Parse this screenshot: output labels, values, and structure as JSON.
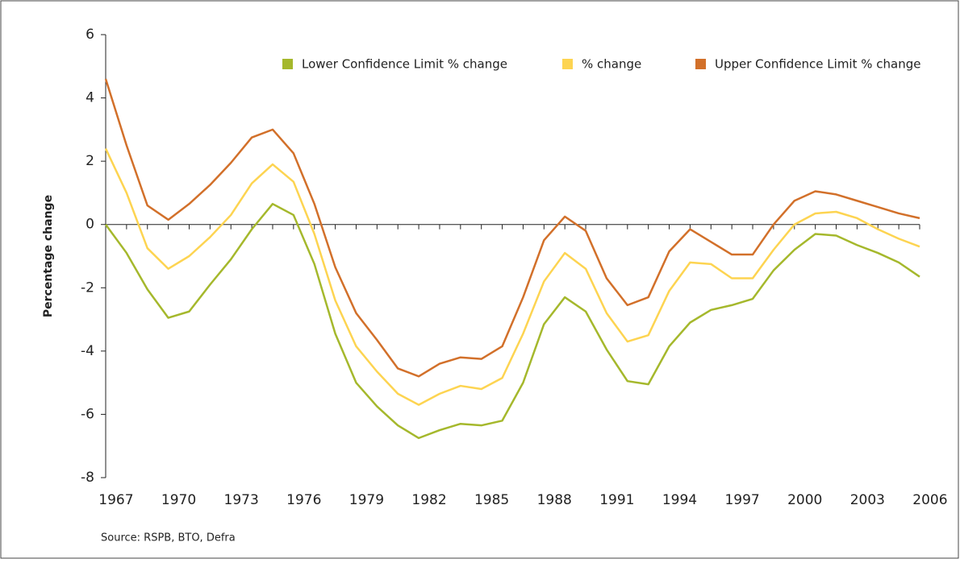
{
  "chart_data": {
    "type": "line",
    "y_label": "Percentage change",
    "source": "Source: RSPB, BTO, Defra",
    "categories": [
      "1967",
      null,
      null,
      "1970",
      null,
      null,
      "1973",
      null,
      null,
      "1976",
      null,
      null,
      "1979",
      null,
      null,
      "1982",
      null,
      null,
      "1985",
      null,
      null,
      "1988",
      null,
      null,
      "1991",
      null,
      null,
      "1994",
      null,
      null,
      "1997",
      null,
      null,
      "2000",
      null,
      null,
      "2003",
      null,
      null,
      "2006"
    ],
    "series": [
      {
        "name": "Lower Confidence Limit % change",
        "color": "#a5b82c",
        "values": [
          0.0,
          -0.9,
          -2.05,
          -2.95,
          -2.75,
          -1.9,
          -1.1,
          -0.15,
          0.65,
          0.3,
          -1.25,
          -3.45,
          -5.0,
          -5.75,
          -6.35,
          -6.75,
          -6.5,
          -6.3,
          -6.35,
          -6.2,
          -5.0,
          -3.15,
          -2.3,
          -2.75,
          -3.95,
          -4.95,
          -5.05,
          -3.85,
          -3.1,
          -2.7,
          -2.55,
          -2.35,
          -1.45,
          -0.8,
          -0.3,
          -0.35,
          -0.65,
          -0.9,
          -1.2,
          -1.65
        ]
      },
      {
        "name": "% change",
        "color": "#fdd451",
        "values": [
          2.4,
          1.0,
          -0.75,
          -1.4,
          -1.0,
          -0.4,
          0.3,
          1.3,
          1.9,
          1.35,
          -0.3,
          -2.4,
          -3.85,
          -4.65,
          -5.35,
          -5.7,
          -5.35,
          -5.1,
          -5.2,
          -4.85,
          -3.45,
          -1.8,
          -0.9,
          -1.4,
          -2.8,
          -3.7,
          -3.5,
          -2.1,
          -1.2,
          -1.25,
          -1.7,
          -1.7,
          -0.8,
          0.0,
          0.35,
          0.4,
          0.2,
          -0.15,
          -0.45,
          -0.7
        ]
      },
      {
        "name": "Upper Confidence Limit % change",
        "color": "#d2702a",
        "values": [
          4.6,
          2.5,
          0.6,
          0.15,
          0.65,
          1.25,
          1.95,
          2.75,
          3.0,
          2.25,
          0.65,
          -1.35,
          -2.8,
          -3.65,
          -4.55,
          -4.8,
          -4.4,
          -4.2,
          -4.25,
          -3.85,
          -2.3,
          -0.5,
          0.25,
          -0.2,
          -1.7,
          -2.55,
          -2.3,
          -0.85,
          -0.15,
          -0.55,
          -0.95,
          -0.95,
          0.0,
          0.75,
          1.05,
          0.95,
          0.75,
          0.55,
          0.35,
          0.2
        ]
      }
    ],
    "ylim": [
      -8,
      6
    ],
    "yticks": [
      -8,
      -6,
      -4,
      -2,
      0,
      2,
      4,
      6
    ],
    "legend": "top"
  }
}
